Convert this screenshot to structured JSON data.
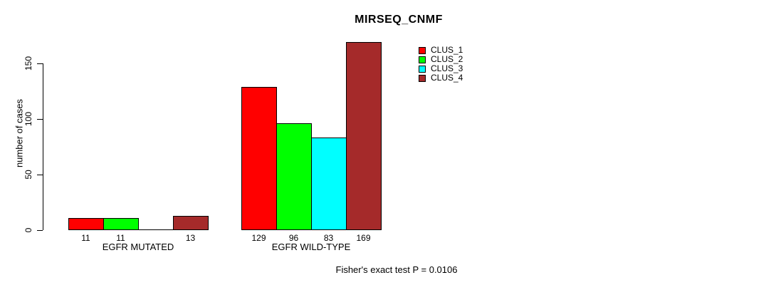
{
  "chart_data": {
    "type": "bar",
    "title": "MIRSEQ_CNMF",
    "ylabel": "number of cases",
    "xlabel": "",
    "yticks": [
      0,
      50,
      100,
      150
    ],
    "ylim": [
      0,
      175
    ],
    "grid": false,
    "legend_position": "top-right-inside",
    "categories": [
      "EGFR MUTATED",
      "EGFR WILD-TYPE"
    ],
    "series": [
      {
        "name": "CLUS_1",
        "color": "#ff0000",
        "values": [
          11,
          129
        ]
      },
      {
        "name": "CLUS_2",
        "color": "#00ff00",
        "values": [
          11,
          96
        ]
      },
      {
        "name": "CLUS_3",
        "color": "#00ffff",
        "values": [
          0,
          83
        ]
      },
      {
        "name": "CLUS_4",
        "color": "#a52a2a",
        "values": [
          13,
          169
        ]
      }
    ],
    "bar_value_labels": [
      [
        "11",
        "11",
        "",
        "13"
      ],
      [
        "129",
        "96",
        "83",
        "169"
      ]
    ],
    "annotation": "Fisher's exact test P = 0.0106"
  }
}
